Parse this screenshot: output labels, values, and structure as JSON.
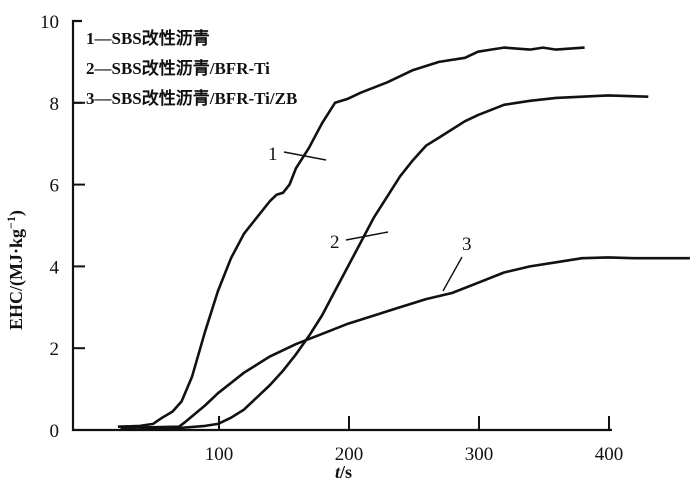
{
  "chart_data": {
    "type": "line",
    "title": "",
    "xlabel_italic": "t",
    "xlabel_unit": "/s",
    "ylabel": "EHC/(MJ·kg",
    "ylabel_sup": "−1",
    "ylabel_close": ")",
    "xlim": [
      -11,
      470
    ],
    "ylim": [
      0,
      10
    ],
    "xticks": [
      100,
      200,
      300,
      400
    ],
    "yticks": [
      0,
      2,
      4,
      6,
      8,
      10
    ],
    "grid": false,
    "legend_position": "top-left",
    "legend": [
      "1—SBS改性沥青",
      "2—SBS改性沥青/BFR-Ti",
      "3—SBS改性沥青/BFR-Ti/ZB"
    ],
    "series": [
      {
        "name": "1",
        "x": [
          23,
          40,
          50,
          57,
          65,
          72,
          80,
          90,
          100,
          110,
          120,
          130,
          140,
          145,
          150,
          155,
          160,
          170,
          180,
          190,
          200,
          210,
          230,
          250,
          270,
          290,
          300,
          310,
          320,
          340,
          350,
          360,
          382
        ],
        "y": [
          0.08,
          0.1,
          0.15,
          0.3,
          0.45,
          0.7,
          1.3,
          2.4,
          3.4,
          4.2,
          4.8,
          5.2,
          5.6,
          5.75,
          5.8,
          6.0,
          6.4,
          6.9,
          7.5,
          8.0,
          8.1,
          8.25,
          8.5,
          8.8,
          9.0,
          9.1,
          9.25,
          9.3,
          9.35,
          9.3,
          9.35,
          9.3,
          9.35
        ]
      },
      {
        "name": "2",
        "x": [
          40,
          70,
          90,
          100,
          110,
          120,
          130,
          140,
          150,
          160,
          170,
          180,
          190,
          200,
          210,
          220,
          230,
          240,
          250,
          260,
          270,
          280,
          290,
          300,
          320,
          340,
          360,
          380,
          400,
          431
        ],
        "y": [
          0.05,
          0.05,
          0.1,
          0.15,
          0.3,
          0.5,
          0.8,
          1.1,
          1.45,
          1.85,
          2.3,
          2.8,
          3.4,
          4.0,
          4.6,
          5.2,
          5.7,
          6.2,
          6.6,
          6.95,
          7.15,
          7.35,
          7.55,
          7.7,
          7.95,
          8.05,
          8.12,
          8.15,
          8.18,
          8.15
        ]
      },
      {
        "name": "3",
        "x": [
          25,
          70,
          75,
          90,
          100,
          120,
          140,
          160,
          180,
          200,
          220,
          240,
          260,
          280,
          300,
          320,
          340,
          360,
          380,
          400,
          420,
          440,
          463
        ],
        "y": [
          0.05,
          0.08,
          0.2,
          0.6,
          0.9,
          1.4,
          1.8,
          2.1,
          2.35,
          2.6,
          2.8,
          3.0,
          3.2,
          3.35,
          3.6,
          3.85,
          4.0,
          4.1,
          4.2,
          4.22,
          4.2,
          4.2,
          4.2
        ]
      }
    ],
    "annotations": [
      {
        "text": "1",
        "series": "1"
      },
      {
        "text": "2",
        "series": "2"
      },
      {
        "text": "3",
        "series": "3"
      }
    ]
  }
}
